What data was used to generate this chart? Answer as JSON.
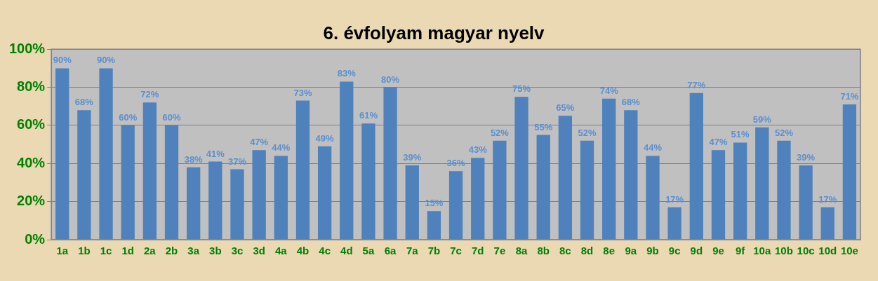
{
  "chart_data": {
    "type": "bar",
    "title": "6. évfolyam magyar nyelv",
    "categories": [
      "1a",
      "1b",
      "1c",
      "1d",
      "2a",
      "2b",
      "3a",
      "3b",
      "3c",
      "3d",
      "4a",
      "4b",
      "4c",
      "4d",
      "5a",
      "6a",
      "7a",
      "7b",
      "7c",
      "7d",
      "7e",
      "8a",
      "8b",
      "8c",
      "8d",
      "8e",
      "9a",
      "9b",
      "9c",
      "9d",
      "9e",
      "9f",
      "10a",
      "10b",
      "10c",
      "10d",
      "10e"
    ],
    "values": [
      90,
      68,
      90,
      60,
      72,
      60,
      38,
      41,
      37,
      47,
      44,
      73,
      49,
      83,
      61,
      80,
      39,
      15,
      36,
      43,
      52,
      75,
      55,
      65,
      52,
      74,
      68,
      44,
      17,
      77,
      47,
      51,
      59,
      52,
      39,
      17,
      71
    ],
    "value_labels": [
      "90%",
      "68%",
      "90%",
      "60%",
      "72%",
      "60%",
      "38%",
      "41%",
      "37%",
      "47%",
      "44%",
      "73%",
      "49%",
      "83%",
      "61%",
      "80%",
      "39%",
      "15%",
      "36%",
      "43%",
      "52%",
      "75%",
      "55%",
      "65%",
      "52%",
      "74%",
      "68%",
      "44%",
      "17%",
      "77%",
      "47%",
      "51%",
      "59%",
      "52%",
      "39%",
      "17%",
      "71%"
    ],
    "color": "#4f81bd",
    "ylim": [
      0,
      100
    ],
    "yticks": [
      {
        "value": 0,
        "label": "0%"
      },
      {
        "value": 20,
        "label": "20%"
      },
      {
        "value": 40,
        "label": "40%"
      },
      {
        "value": 60,
        "label": "60%"
      },
      {
        "value": 80,
        "label": "80%"
      },
      {
        "value": 100,
        "label": "100%"
      }
    ],
    "grid": "y"
  }
}
